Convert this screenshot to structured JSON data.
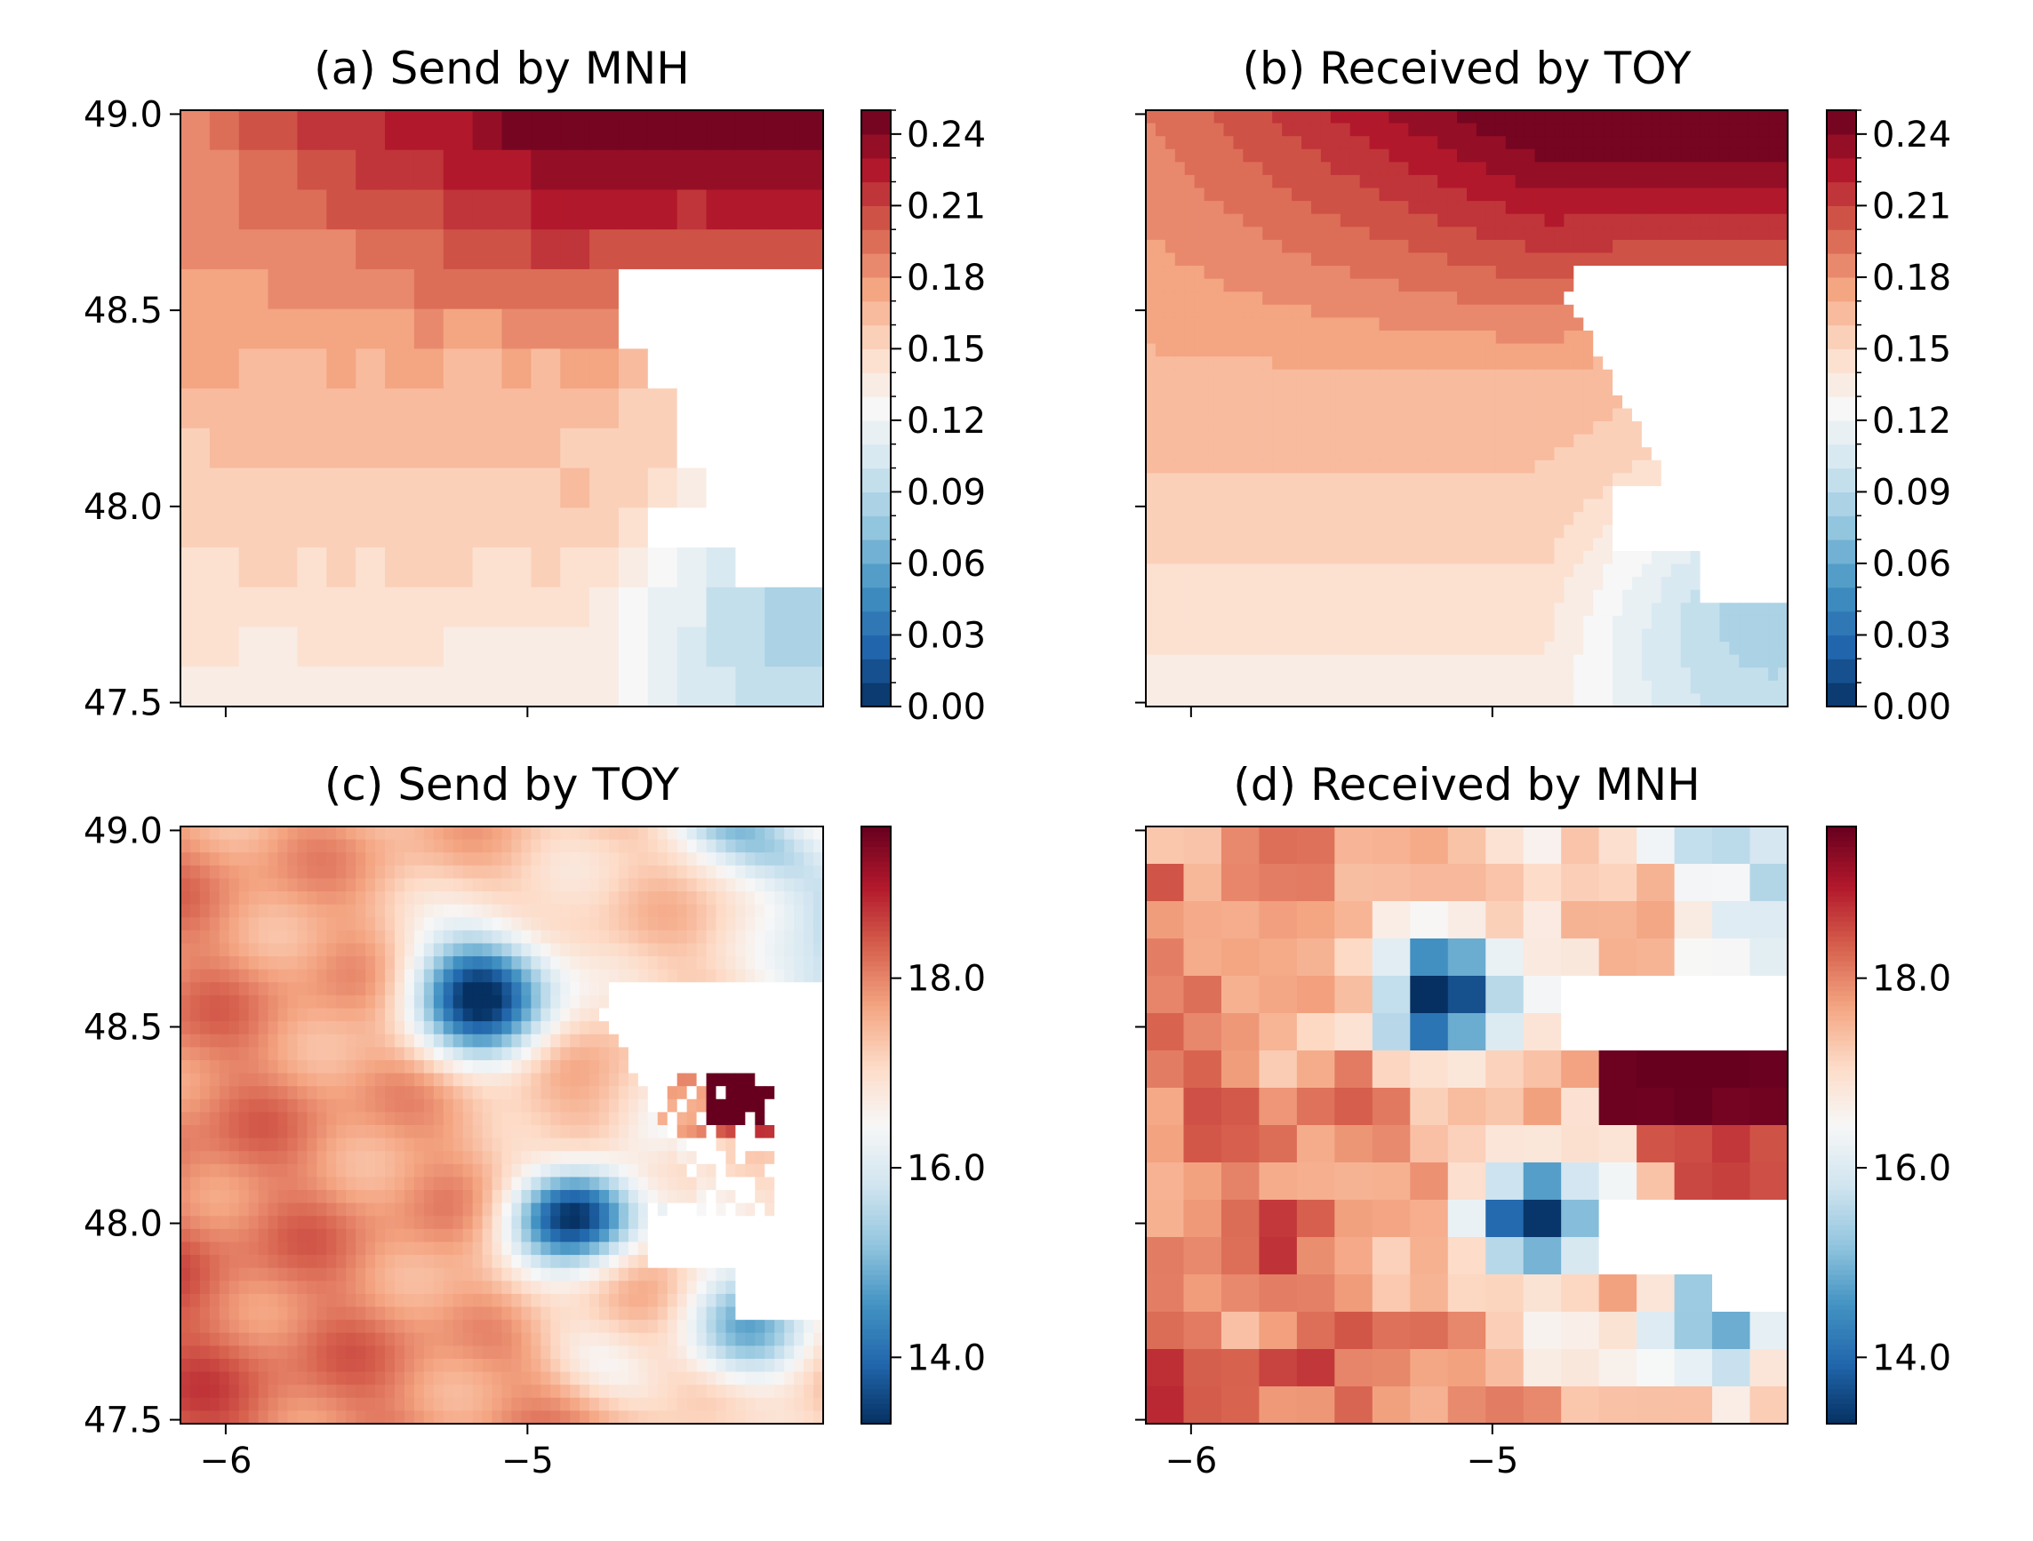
{
  "figure": {
    "colormap": "RdBu_r",
    "colormap_stops": [
      "#053061",
      "#2166ac",
      "#4393c3",
      "#92c5de",
      "#d1e5f0",
      "#f7f7f7",
      "#fddbc7",
      "#f4a582",
      "#d6604d",
      "#b2182b",
      "#67001f"
    ],
    "missing_color": "#ffffff"
  },
  "chart_data": [
    {
      "type": "heatmap",
      "panel": "a",
      "title": "(a) Send by MNH",
      "xlim": [
        -6.15,
        -4.02
      ],
      "ylim": [
        47.49,
        49.01
      ],
      "xticks": [
        -6,
        -5
      ],
      "xtick_labels": [
        "",
        ""
      ],
      "yticks": [
        47.5,
        48.0,
        48.5,
        49.0
      ],
      "ytick_labels": [
        "47.5",
        "48.0",
        "48.5",
        "49.0"
      ],
      "grid": [
        22,
        15
      ],
      "field": "mnh_flux",
      "colorbar": {
        "vmin": 0.0,
        "vmax": 0.25,
        "levels": 25,
        "ticks": [
          0.0,
          0.03,
          0.06,
          0.09,
          0.12,
          0.15,
          0.18,
          0.21,
          0.24
        ],
        "tick_labels": [
          "0.00",
          "0.03",
          "0.06",
          "0.09",
          "0.12",
          "0.15",
          "0.18",
          "0.21",
          "0.24"
        ]
      }
    },
    {
      "type": "heatmap",
      "panel": "b",
      "title": "(b) Received by TOY",
      "xlim": [
        -6.15,
        -4.02
      ],
      "ylim": [
        47.49,
        49.01
      ],
      "xticks": [
        -6,
        -5
      ],
      "xtick_labels": [
        "",
        ""
      ],
      "yticks": [
        47.5,
        48.0,
        48.5,
        49.0
      ],
      "ytick_labels": [
        "",
        "",
        "",
        ""
      ],
      "grid": [
        66,
        46
      ],
      "field": "toy_flux",
      "colorbar": {
        "vmin": 0.0,
        "vmax": 0.25,
        "levels": 25,
        "ticks": [
          0.0,
          0.03,
          0.06,
          0.09,
          0.12,
          0.15,
          0.18,
          0.21,
          0.24
        ],
        "tick_labels": [
          "0.00",
          "0.03",
          "0.06",
          "0.09",
          "0.12",
          "0.15",
          "0.18",
          "0.21",
          "0.24"
        ]
      }
    },
    {
      "type": "heatmap",
      "panel": "c",
      "title": "(c) Send by TOY",
      "xlim": [
        -6.15,
        -4.02
      ],
      "ylim": [
        47.49,
        49.01
      ],
      "xticks": [
        -6,
        -5
      ],
      "xtick_labels": [
        "−6",
        "−5"
      ],
      "yticks": [
        47.5,
        48.0,
        48.5,
        49.0
      ],
      "ytick_labels": [
        "47.5",
        "48.0",
        "48.5",
        "49.0"
      ],
      "grid": [
        66,
        46
      ],
      "field": "toy_sst",
      "colorbar": {
        "vmin": 13.3,
        "vmax": 19.6,
        "levels": 0,
        "ticks": [
          14.0,
          16.0,
          18.0
        ],
        "tick_labels": [
          "14.0",
          "16.0",
          "18.0"
        ]
      }
    },
    {
      "type": "heatmap",
      "panel": "d",
      "title": "(d) Received by MNH",
      "xlim": [
        -6.15,
        -4.02
      ],
      "ylim": [
        47.49,
        49.01
      ],
      "xticks": [
        -6,
        -5
      ],
      "xtick_labels": [
        "−6",
        "−5"
      ],
      "yticks": [
        47.5,
        48.0,
        48.5,
        49.0
      ],
      "ytick_labels": [
        "",
        "",
        "",
        ""
      ],
      "grid": [
        17,
        16
      ],
      "field": "mnh_sst",
      "colorbar": {
        "vmin": 13.3,
        "vmax": 19.6,
        "levels": 0,
        "ticks": [
          14.0,
          16.0,
          18.0
        ],
        "tick_labels": [
          "14.0",
          "16.0",
          "18.0"
        ]
      }
    }
  ]
}
